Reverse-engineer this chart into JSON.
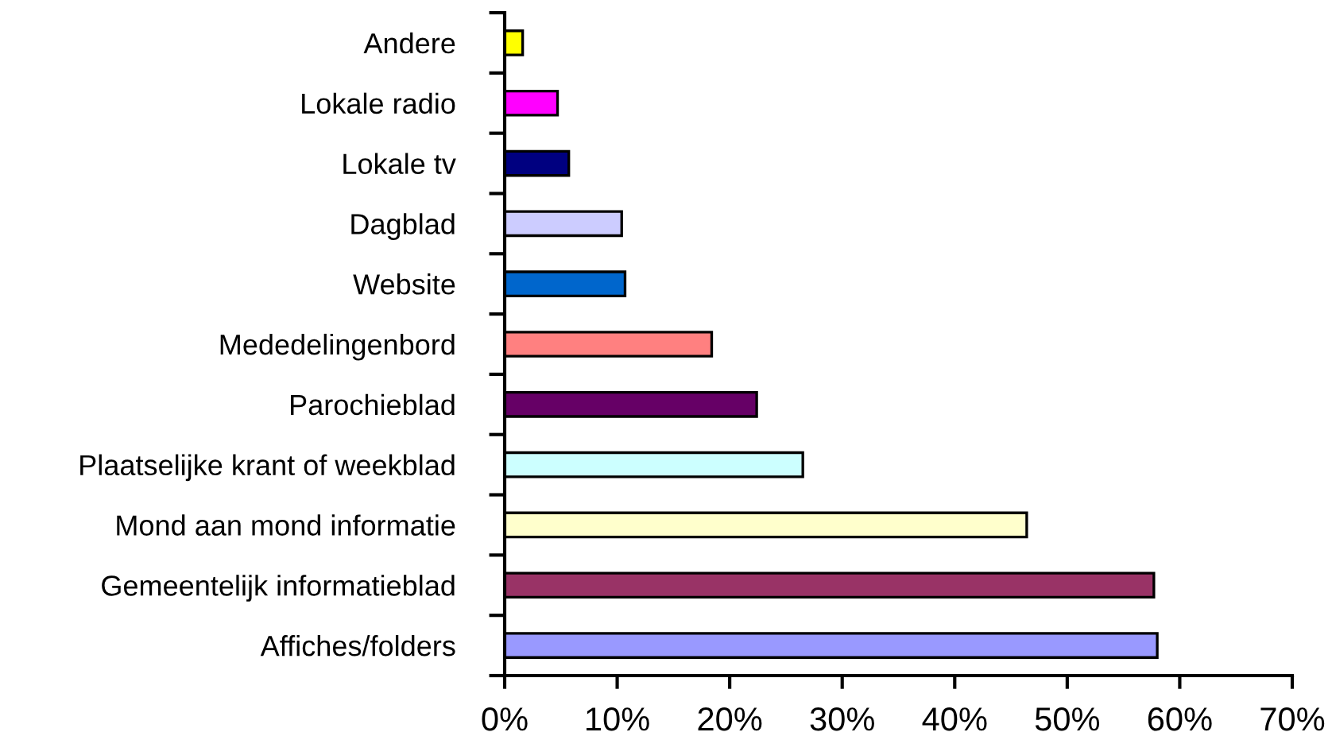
{
  "chart_data": {
    "type": "bar",
    "orientation": "horizontal",
    "categories": [
      "Andere",
      "Lokale radio",
      "Lokale tv",
      "Dagblad",
      "Website",
      "Mededelingenbord",
      "Parochieblad",
      "Plaatselijke krant of weekblad",
      "Mond aan mond informatie",
      "Gemeentelijk informatieblad",
      "Affiches/folders"
    ],
    "values": [
      1.6,
      4.7,
      5.7,
      10.4,
      10.7,
      18.4,
      22.4,
      26.5,
      46.4,
      57.7,
      58.0
    ],
    "colors": [
      "#ffff00",
      "#ff00ff",
      "#000080",
      "#ccccff",
      "#0066cc",
      "#ff8080",
      "#660066",
      "#ccffff",
      "#ffffcc",
      "#993366",
      "#9999ff"
    ],
    "xlim": [
      0,
      70
    ],
    "xticks": [
      {
        "value": 0,
        "label": "0%"
      },
      {
        "value": 10,
        "label": "10%"
      },
      {
        "value": 20,
        "label": "20%"
      },
      {
        "value": 30,
        "label": "30%"
      },
      {
        "value": 40,
        "label": "40%"
      },
      {
        "value": 50,
        "label": "50%"
      },
      {
        "value": 60,
        "label": "60%"
      },
      {
        "value": 70,
        "label": "70%"
      }
    ],
    "grid": false,
    "legend": false
  }
}
